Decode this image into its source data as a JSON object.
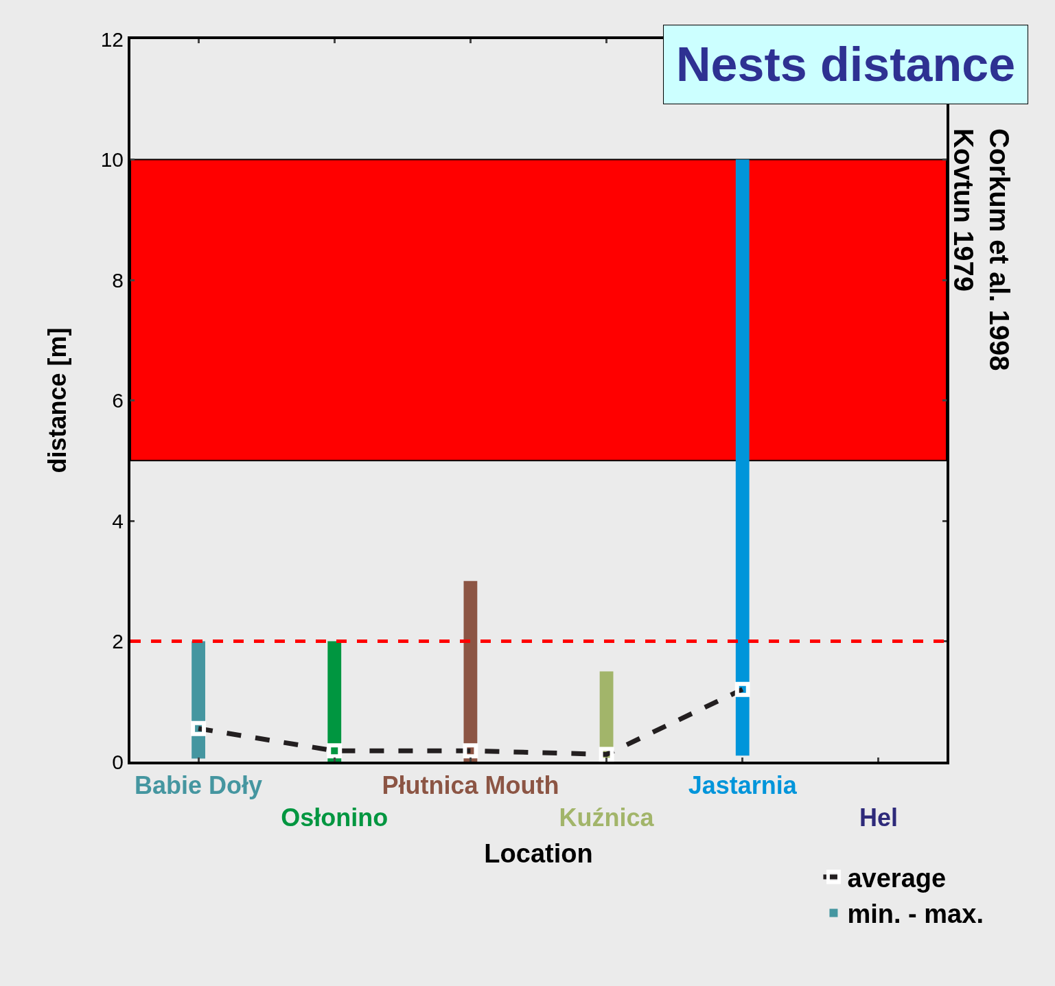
{
  "chart_data": {
    "type": "bar",
    "title": "Nests distance",
    "xlabel": "Location",
    "ylabel": "distance [m]",
    "categories": [
      "Babie Doły",
      "Osłonino",
      "Płutnica Mouth",
      "Kuźnica",
      "Jastarnia",
      "Hel"
    ],
    "series": [
      {
        "name": "min. - max.",
        "base": [
          0.05,
          0,
          0,
          0,
          0.1,
          null
        ],
        "values": [
          1.95,
          2.0,
          3.0,
          1.5,
          9.9,
          null
        ],
        "colors": [
          "#4596a0",
          "#009640",
          "#8c5544",
          "#a2b56a",
          "#0095da",
          "#2e2a7a"
        ]
      },
      {
        "name": "average",
        "type": "line",
        "values": [
          0.55,
          0.18,
          0.18,
          0.12,
          1.2,
          null
        ],
        "color": "#231f20"
      }
    ],
    "ylim": [
      0,
      12
    ],
    "yticks": [
      0,
      2,
      4,
      6,
      8,
      10,
      12
    ],
    "grid": false,
    "legend": "bottom right",
    "marker": "square",
    "line_style": "dashed",
    "ref_lines": [
      {
        "axis": "y",
        "value": 2,
        "color": "#ff0000",
        "line_style": "dashed"
      }
    ],
    "bands": [
      {
        "axis": "y",
        "from": 5,
        "to": 10,
        "label": "Corkum et al. 1998\nKovtun 1979",
        "color": "#ff0000"
      }
    ]
  }
}
